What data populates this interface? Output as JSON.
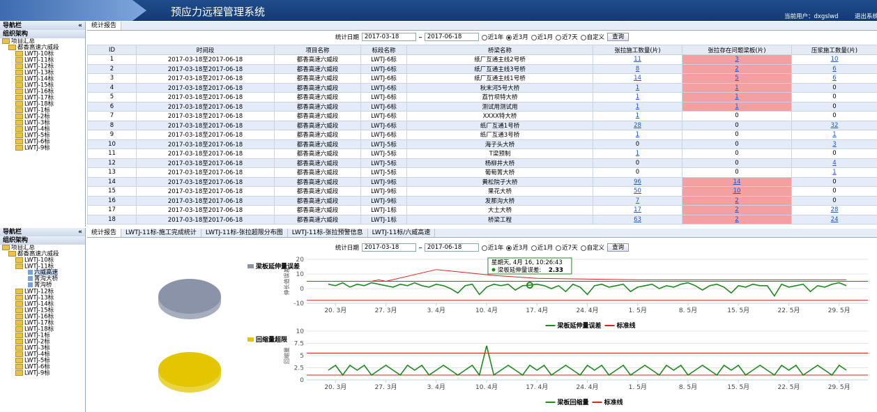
{
  "header": {
    "title": "预应力远程管理系统",
    "user": "当前用户：dxgslwd",
    "logout": "退出系统"
  },
  "nav_top": {
    "title": "导航栏",
    "collapse": "«",
    "org": "组织架构",
    "root": "项目汇总",
    "project": "都香高速六威段",
    "items": [
      "LWTJ-10标",
      "LWTJ-11标",
      "LWTJ-12标",
      "LWTJ-13标",
      "LWTJ-14标",
      "LWTJ-15标",
      "LWTJ-16标",
      "LWTJ-17标",
      "LWTJ-18标",
      "LWTJ-1标",
      "LWTJ-2标",
      "LWTJ-3标",
      "LWTJ-4标",
      "LWTJ-5标",
      "LWTJ-6标",
      "LWTJ-9标"
    ]
  },
  "report_tabs": [
    "统计报告"
  ],
  "filter": {
    "label": "统计日期",
    "start": "2017-03-18",
    "end": "2017-06-18",
    "options": [
      "近1年",
      "近3月",
      "近1月",
      "近7天",
      "自定义"
    ],
    "selected": 1,
    "button": "查询"
  },
  "table": {
    "columns": [
      "ID",
      "时间段",
      "项目名称",
      "标段名称",
      "桥梁名称",
      "张拉施工数量(片)",
      "张拉存在问题梁板(片)",
      "压浆施工数量(片)"
    ],
    "rows": [
      [
        1,
        "2017-03-18至2017-06-18",
        "都香高速六威段",
        "LWTJ-6标",
        "纸厂互通主线2号桥",
        11,
        3,
        10
      ],
      [
        2,
        "2017-03-18至2017-06-18",
        "都香高速六威段",
        "LWTJ-6标",
        "纸厂互通主线3号桥",
        8,
        2,
        6
      ],
      [
        3,
        "2017-03-18至2017-06-18",
        "都香高速六威段",
        "LWTJ-6标",
        "纸厂互通主线1号桥",
        14,
        5,
        6
      ],
      [
        4,
        "2017-03-18至2017-06-18",
        "都香高速六威段",
        "LWTJ-6标",
        "秋末河5号大桥",
        1,
        1,
        0
      ],
      [
        5,
        "2017-03-18至2017-06-18",
        "都香高速六威段",
        "LWTJ-6标",
        "荔竹坝特大桥",
        1,
        1,
        0
      ],
      [
        6,
        "2017-03-18至2017-06-18",
        "都香高速六威段",
        "LWTJ-6标",
        "测试用测试用",
        1,
        1,
        0
      ],
      [
        7,
        "2017-03-18至2017-06-18",
        "都香高速六威段",
        "LWTJ-6标",
        "XXXX特大桥",
        1,
        0,
        0
      ],
      [
        8,
        "2017-03-18至2017-06-18",
        "都香高速六威段",
        "LWTJ-6标",
        "纸厂互通1号桥",
        28,
        0,
        32
      ],
      [
        9,
        "2017-03-18至2017-06-18",
        "都香高速六威段",
        "LWTJ-6标",
        "纸厂互通3号桥",
        1,
        0,
        1
      ],
      [
        10,
        "2017-03-18至2017-06-18",
        "都香高速六威段",
        "LWTJ-5标",
        "海子头大桥",
        0,
        0,
        3
      ],
      [
        11,
        "2017-03-18至2017-06-18",
        "都香高速六威段",
        "LWTJ-5标",
        "T梁预制",
        1,
        0,
        0
      ],
      [
        12,
        "2017-03-18至2017-06-18",
        "都香高速六威段",
        "LWTJ-5标",
        "杨柳井大桥",
        0,
        0,
        4
      ],
      [
        13,
        "2017-03-18至2017-06-18",
        "都香高速六威段",
        "LWTJ-5标",
        "葡萄箐大桥",
        0,
        0,
        1
      ],
      [
        14,
        "2017-03-18至2017-06-18",
        "都香高速六威段",
        "LWTJ-9标",
        "黄松院子大桥",
        96,
        14,
        0
      ],
      [
        15,
        "2017-03-18至2017-06-18",
        "都香高速六威段",
        "LWTJ-9标",
        "果花大桥",
        50,
        10,
        0
      ],
      [
        16,
        "2017-03-18至2017-06-18",
        "都香高速六威段",
        "LWTJ-9标",
        "发那沟大桥",
        7,
        2,
        0
      ],
      [
        17,
        "2017-03-18至2017-06-18",
        "都香高速六威段",
        "LWTJ-1标",
        "大土大桥",
        17,
        2,
        28
      ],
      [
        18,
        "2017-03-18至2017-06-18",
        "都香高速六威段",
        "LWTJ-1标",
        "桥梁工程",
        63,
        2,
        24
      ]
    ]
  },
  "nav_bottom": {
    "title": "导航栏",
    "collapse": "«",
    "org": "组织架构",
    "root": "项目汇总",
    "project": "都香高速六威段",
    "items": [
      "LWTJ-10标",
      "LWTJ-11标",
      "LWTJ-12标",
      "LWTJ-13标",
      "LWTJ-14标",
      "LWTJ-15标",
      "LWTJ-16标",
      "LWTJ-17标",
      "LWTJ-18标",
      "LWTJ-1标",
      "LWTJ-2标",
      "LWTJ-3标",
      "LWTJ-4标",
      "LWTJ-5标",
      "LWTJ-6标",
      "LWTJ-9标"
    ],
    "expanded": 1,
    "children": [
      "六威高速",
      "箐沟大桥",
      "箐沟桥"
    ],
    "selected_child": 0
  },
  "chart_tabs": [
    "统计报告",
    "LWTJ-11标-施工完成统计",
    "LWTJ-11标-张拉超限分布图",
    "LWTJ-11标-张拉预警信息",
    "LWTJ-11标/六威高速"
  ],
  "chart_filter": {
    "label": "统计日期",
    "start": "2017-03-18",
    "end": "2017-06-18",
    "options": [
      "近1年",
      "近3月",
      "近1月",
      "近7天",
      "自定义"
    ],
    "selected": 1,
    "button": "查询"
  },
  "chart_data": [
    {
      "type": "pie",
      "categories": [
        "梁板延伸量误差"
      ],
      "values": [
        100
      ],
      "colors": [
        "#8a93a8"
      ]
    },
    {
      "type": "line",
      "y_label": "伸长值误差",
      "xlim": [
        -2,
        76
      ],
      "ylim": [
        -10,
        20
      ],
      "yticks": [
        -10,
        0,
        10,
        20
      ],
      "xticks": [
        {
          "value": 2,
          "label": "20. 3月"
        },
        {
          "value": 9,
          "label": "27. 3月"
        },
        {
          "value": 16,
          "label": "3. 4月"
        },
        {
          "value": 23,
          "label": "10. 4月"
        },
        {
          "value": 30,
          "label": "17. 4月"
        },
        {
          "value": 37,
          "label": "24. 4月"
        },
        {
          "value": 44,
          "label": "1. 5月"
        },
        {
          "value": 51,
          "label": "8. 5月"
        },
        {
          "value": 58,
          "label": "15. 5月"
        },
        {
          "value": 65,
          "label": "22. 5月"
        },
        {
          "value": 72,
          "label": "29. 5月"
        }
      ],
      "x": [
        1,
        2,
        3,
        4,
        5,
        6,
        7,
        8,
        9,
        10,
        11,
        12,
        13,
        14,
        15,
        16,
        17,
        18,
        19,
        20,
        21,
        22,
        23,
        24,
        25,
        26,
        27,
        28,
        29,
        30,
        31,
        32,
        33,
        34,
        35,
        36,
        37,
        38,
        39,
        40,
        41,
        42,
        43,
        44,
        45,
        46,
        47,
        48,
        49,
        50,
        51,
        52,
        53,
        54,
        55,
        56,
        57,
        58,
        59,
        60,
        61,
        62,
        63,
        64,
        65,
        66,
        67,
        68,
        69,
        70,
        71,
        72,
        73
      ],
      "series": [
        {
          "name": "梁板延伸量误差",
          "color": "#1e8a1e",
          "values": [
            3,
            2,
            4,
            1,
            3,
            2,
            4,
            3,
            2,
            1,
            3,
            2,
            4,
            2,
            1,
            3,
            2,
            0,
            -3,
            2,
            3,
            -4,
            1,
            3,
            2,
            3,
            -1,
            2,
            2.33,
            3,
            2,
            0,
            2,
            -2,
            3,
            1,
            -4,
            2,
            3,
            1,
            2,
            3,
            -2,
            1,
            2,
            3,
            0,
            2,
            1,
            3,
            4,
            2,
            -1,
            2,
            3,
            1,
            -3,
            2,
            1,
            3,
            2,
            2,
            -5,
            3,
            1,
            2,
            3,
            -2,
            2,
            1,
            3,
            4,
            2
          ]
        },
        {
          "name": "标准线",
          "color": "#e0201c",
          "x": [
            7,
            8,
            9,
            16,
            24,
            30,
            44,
            73
          ],
          "values": [
            5,
            6,
            5,
            13,
            9,
            7,
            6,
            6
          ]
        }
      ],
      "plot_lines": [
        {
          "value": 5,
          "color": "#e0201c"
        },
        {
          "value": -8,
          "color": "#e0201c"
        }
      ],
      "tooltip": {
        "title": "星期天, 4月 16, 10:26:43",
        "label": "梁板延伸量误差:",
        "x": 29,
        "value": 2.33
      }
    },
    {
      "type": "pie",
      "categories": [
        "回缩量超限"
      ],
      "values": [
        100
      ],
      "colors": [
        "#e3c600"
      ]
    },
    {
      "type": "line",
      "y_label": "回缩量",
      "xlim": [
        -2,
        76
      ],
      "ylim": [
        0,
        10
      ],
      "yticks": [
        0,
        2.5,
        5,
        7.5,
        10
      ],
      "xticks": [
        {
          "value": 2,
          "label": "20. 3月"
        },
        {
          "value": 9,
          "label": "27. 3月"
        },
        {
          "value": 16,
          "label": "3. 4月"
        },
        {
          "value": 23,
          "label": "10. 4月"
        },
        {
          "value": 30,
          "label": "17. 4月"
        },
        {
          "value": 37,
          "label": "24. 4月"
        },
        {
          "value": 44,
          "label": "1. 5月"
        },
        {
          "value": 51,
          "label": "8. 5月"
        },
        {
          "value": 58,
          "label": "15. 5月"
        },
        {
          "value": 65,
          "label": "22. 5月"
        },
        {
          "value": 72,
          "label": "29. 5月"
        }
      ],
      "x": [
        1,
        2,
        3,
        4,
        5,
        6,
        7,
        8,
        9,
        10,
        11,
        12,
        13,
        14,
        15,
        16,
        17,
        18,
        19,
        20,
        21,
        22,
        23,
        24,
        25,
        26,
        27,
        28,
        29,
        30,
        31,
        32,
        33,
        34,
        35,
        36,
        37,
        38,
        39,
        40,
        41,
        42,
        43,
        44,
        45,
        46,
        47,
        48,
        49,
        50,
        51,
        52,
        53,
        54,
        55,
        56,
        57,
        58,
        59,
        60,
        61,
        62,
        63,
        64,
        65,
        66,
        67,
        68,
        69,
        70,
        71,
        72,
        73
      ],
      "series": [
        {
          "name": "梁板回缩量",
          "color": "#1e8a1e",
          "values": [
            2,
            3,
            1,
            3,
            2,
            3,
            1,
            2,
            3,
            2,
            1,
            3,
            2,
            3,
            1,
            2,
            3,
            2,
            1,
            2,
            3,
            1,
            7,
            1,
            2,
            3,
            2,
            1,
            3,
            2,
            3,
            1,
            2,
            3,
            2,
            1,
            3,
            2,
            3,
            1,
            2,
            3,
            1,
            2,
            3,
            2,
            1,
            3,
            2,
            3,
            1,
            2,
            3,
            2,
            1,
            3,
            2,
            3,
            1,
            2,
            3,
            2,
            1,
            3,
            2,
            3,
            1,
            2,
            3,
            2,
            1,
            3,
            2
          ]
        },
        {
          "name": "标准线",
          "color": "#e0201c",
          "x": [
            -2,
            76
          ],
          "values": [
            5.5,
            5.5
          ]
        }
      ],
      "plot_lines": [
        {
          "value": 5.5,
          "color": "#e0201c"
        },
        {
          "value": 1,
          "color": "#e0201c"
        }
      ]
    }
  ]
}
